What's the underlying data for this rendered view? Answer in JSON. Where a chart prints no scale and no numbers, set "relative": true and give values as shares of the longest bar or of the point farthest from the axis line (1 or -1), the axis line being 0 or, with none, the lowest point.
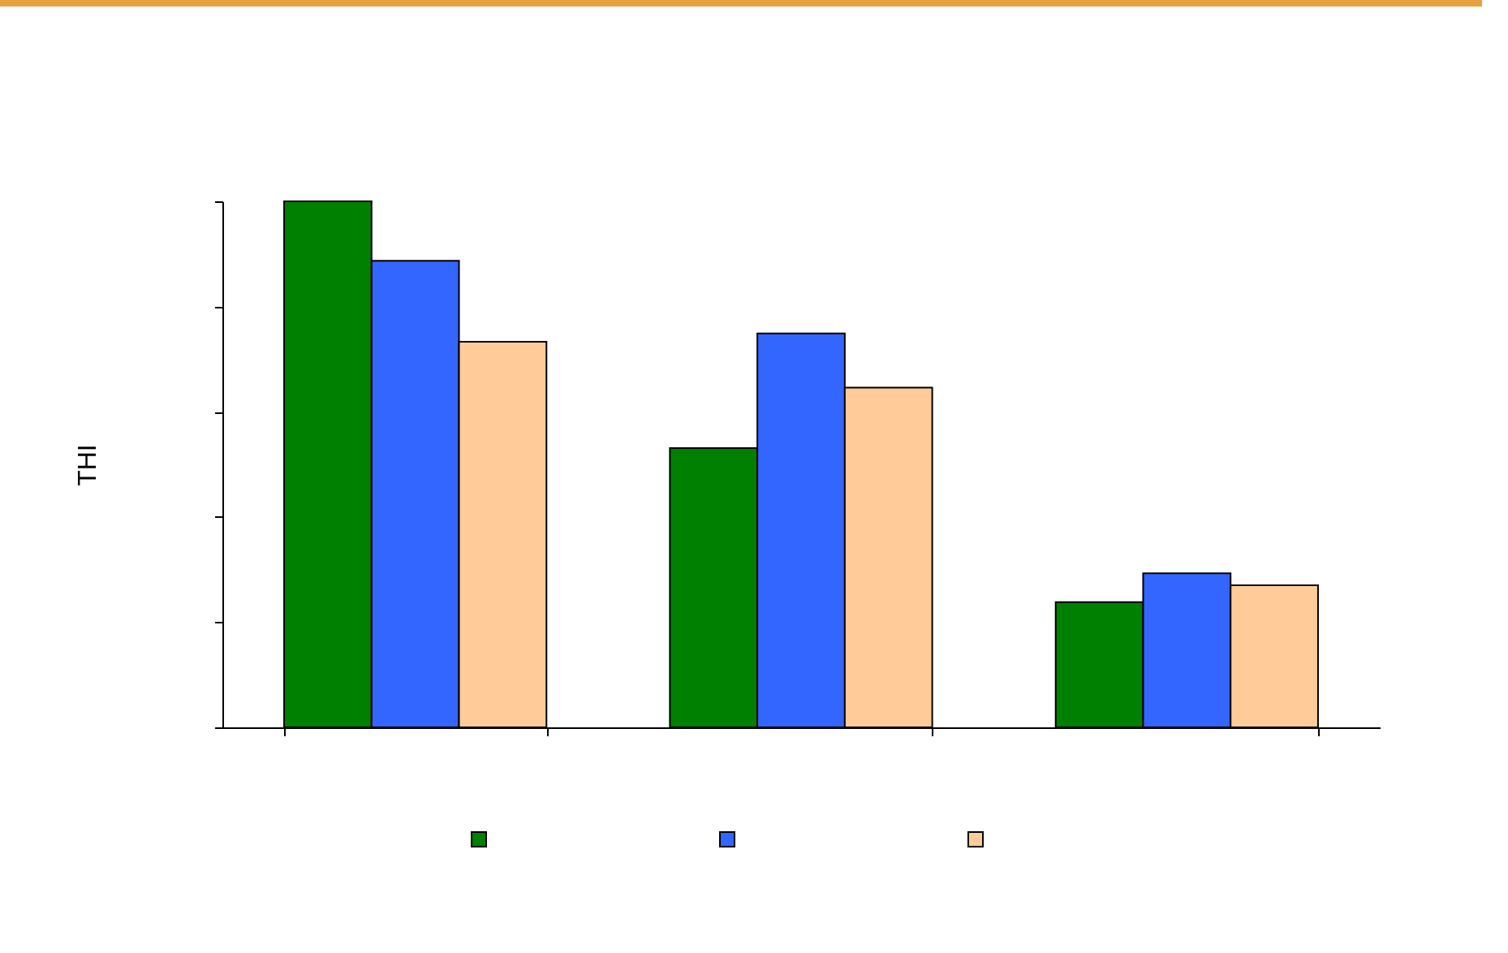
{
  "chart_data": {
    "type": "bar",
    "ylabel": "THI",
    "relative": true,
    "categories": [
      null,
      null,
      null
    ],
    "series": [
      {
        "color": "#008000",
        "values": [
          1,
          0.531,
          0.238
        ]
      },
      {
        "color": "#3366ff",
        "values": [
          0.887,
          0.749,
          0.293
        ]
      },
      {
        "color": "#ffcc99",
        "values": [
          0.733,
          0.646,
          0.27
        ]
      }
    ]
  }
}
